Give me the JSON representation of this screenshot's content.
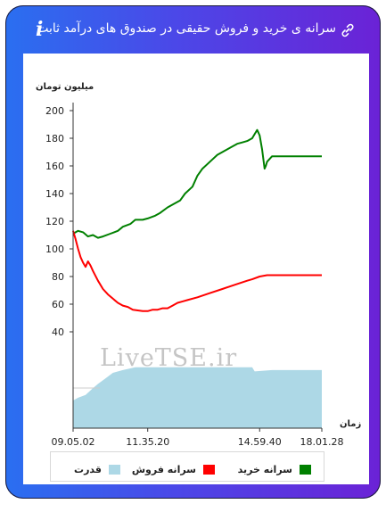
{
  "header": {
    "title": "سرانه ی خرید و فروش حقیقی در صندوق های درآمد ثابت",
    "link_icon": "link-icon",
    "info_icon_text": "i"
  },
  "colors": {
    "frame_start": "#2a6ff0",
    "frame_end": "#6b22d6",
    "buy": "#008000",
    "sell": "#ff0000",
    "power": "#add8e6"
  },
  "watermark": "LiveTSE.ir",
  "chart_data": {
    "type": "line",
    "ylabel": "میلیون تومان",
    "xlabel": "زمان",
    "ylim": [
      0,
      200
    ],
    "y_ticks": [
      "40",
      "60",
      "80",
      "100",
      "120",
      "140",
      "160",
      "180",
      "200"
    ],
    "x_ticks": [
      "09.05.02",
      "11.35.20",
      "14.59.40",
      "18.01.28"
    ],
    "x_tick_positions": [
      0,
      0.3,
      0.75,
      1.0
    ],
    "grid": false,
    "legend_position": "bottom",
    "series": [
      {
        "name": "سرانه خرید",
        "color": "#008000",
        "x": [
          0,
          0.02,
          0.04,
          0.06,
          0.08,
          0.1,
          0.12,
          0.15,
          0.18,
          0.2,
          0.23,
          0.25,
          0.28,
          0.3,
          0.33,
          0.35,
          0.38,
          0.4,
          0.43,
          0.45,
          0.48,
          0.5,
          0.52,
          0.55,
          0.58,
          0.6,
          0.62,
          0.64,
          0.66,
          0.68,
          0.7,
          0.72,
          0.73,
          0.74,
          0.75,
          0.76,
          0.77,
          0.775,
          0.78,
          0.8,
          0.85,
          0.9,
          0.95,
          1.0
        ],
        "values": [
          111,
          113,
          112,
          109,
          110,
          108,
          109,
          111,
          113,
          116,
          118,
          121,
          121,
          122,
          124,
          126,
          130,
          132,
          135,
          140,
          145,
          153,
          158,
          163,
          168,
          170,
          172,
          174,
          176,
          177,
          178,
          180,
          183,
          186,
          182,
          172,
          158,
          160,
          163,
          167,
          167,
          167,
          167,
          167
        ]
      },
      {
        "name": "سرانه فروش",
        "color": "#ff0000",
        "x": [
          0,
          0.01,
          0.02,
          0.03,
          0.04,
          0.05,
          0.06,
          0.07,
          0.08,
          0.1,
          0.12,
          0.14,
          0.16,
          0.18,
          0.2,
          0.22,
          0.24,
          0.26,
          0.28,
          0.3,
          0.32,
          0.34,
          0.36,
          0.38,
          0.4,
          0.42,
          0.44,
          0.46,
          0.5,
          0.55,
          0.6,
          0.65,
          0.7,
          0.72,
          0.75,
          0.78,
          0.8,
          0.85,
          0.9,
          0.95,
          1.0
        ],
        "values": [
          113,
          107,
          100,
          94,
          90,
          87,
          91,
          88,
          84,
          77,
          71,
          67,
          64,
          61,
          59,
          58,
          56,
          55.5,
          55,
          55,
          56,
          56,
          57,
          57,
          59,
          61,
          62,
          63,
          65,
          68,
          71,
          74,
          77,
          78,
          80,
          81,
          81,
          81,
          81,
          81,
          81
        ]
      },
      {
        "name": "قدرت",
        "color": "#add8e6",
        "x": [
          0,
          0.02,
          0.05,
          0.08,
          0.1,
          0.13,
          0.16,
          0.2,
          0.25,
          0.3,
          0.35,
          0.4,
          0.5,
          0.6,
          0.7,
          0.72,
          0.73,
          0.8,
          0.9,
          1.0
        ],
        "values": [
          20,
          22,
          24,
          29,
          32,
          36,
          40,
          42,
          44,
          44,
          44,
          44,
          44,
          44,
          44,
          44,
          41,
          42,
          42,
          42
        ]
      }
    ]
  }
}
